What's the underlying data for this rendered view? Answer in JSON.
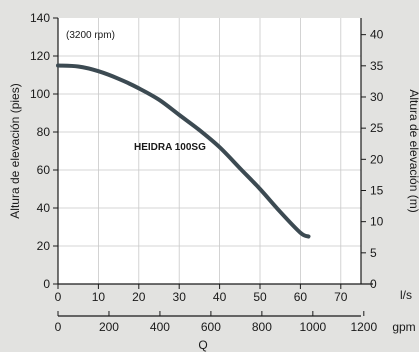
{
  "chart_data": {
    "type": "line",
    "annotation": "(3200 rpm)",
    "series": [
      {
        "name": "HEIDRA 100SG",
        "color": "#3c4a52",
        "x": [
          0,
          5,
          10,
          15,
          20,
          25,
          30,
          35,
          40,
          45,
          50,
          55,
          60,
          62
        ],
        "values": [
          115,
          114.5,
          112,
          108,
          103,
          97,
          89,
          81,
          72,
          61,
          50,
          38,
          27,
          25
        ]
      }
    ],
    "axes": {
      "left": {
        "label": "Altura de elevación (pies)",
        "range": [
          0,
          140
        ],
        "ticks": [
          "0",
          "20",
          "40",
          "60",
          "80",
          "100",
          "120",
          "140"
        ]
      },
      "right": {
        "label": "Altura de elevación (m)",
        "range": [
          0,
          42.67
        ],
        "ticks": [
          "0",
          "5",
          "10",
          "15",
          "20",
          "25",
          "30",
          "35",
          "40"
        ]
      },
      "bottom_ls": {
        "unit": "l/s",
        "range": [
          0,
          75
        ],
        "ticks": [
          "0",
          "10",
          "20",
          "30",
          "40",
          "50",
          "60",
          "70"
        ]
      },
      "bottom_gpm": {
        "unit": "gpm",
        "label": "Q",
        "range": [
          0,
          1189
        ],
        "ticks": [
          "0",
          "200",
          "400",
          "600",
          "800",
          "1000",
          "1200"
        ]
      }
    },
    "grid": true,
    "colors": {
      "background": "#e2e2e0",
      "plot_background": "#ffffff",
      "grid": "#c8c8c8",
      "axis": "#1a1a1a"
    }
  }
}
